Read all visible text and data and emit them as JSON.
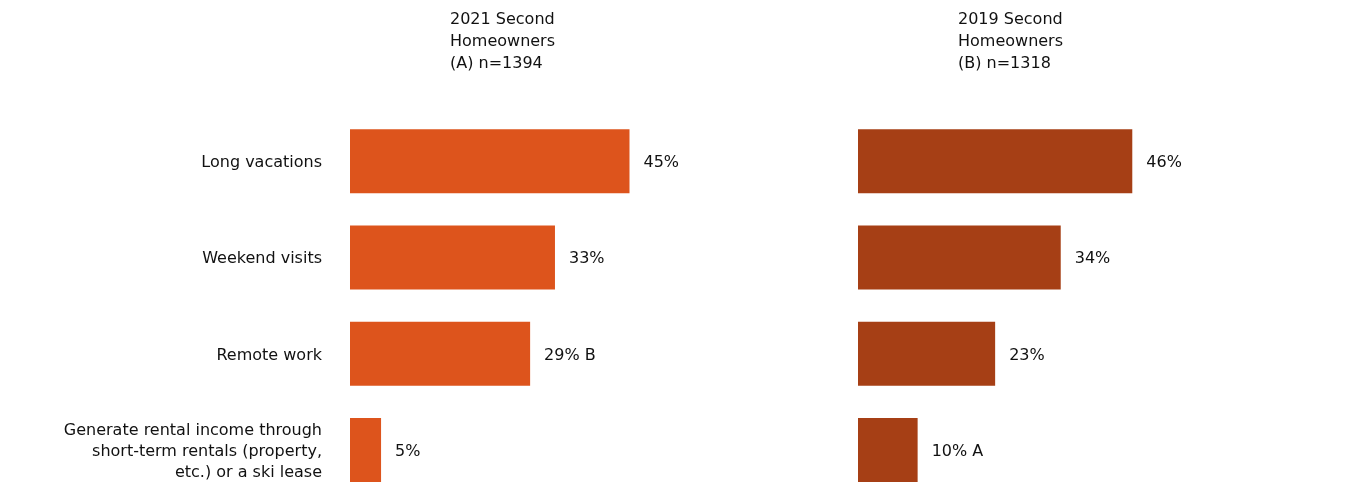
{
  "chart_data": [
    {
      "type": "bar",
      "orientation": "horizontal",
      "title": "2021 Second Homeowners (A) n=1394",
      "categories": [
        "Long vacations",
        "Weekend visits",
        "Remote work",
        "Generate rental income through short-term rentals (property, etc.) or a ski lease"
      ],
      "values": [
        45,
        33,
        29,
        5
      ],
      "value_labels": [
        "45%",
        "33%",
        "29% B",
        "5%"
      ],
      "color": "#dd541c",
      "tick_labels": "y"
    },
    {
      "type": "bar",
      "orientation": "horizontal",
      "title": "2019 Second Homeowners (B) n=1318",
      "categories": [
        null,
        null,
        null,
        null
      ],
      "values": [
        46,
        34,
        23,
        10
      ],
      "value_labels": [
        "46%",
        "34%",
        "23%",
        "10% A"
      ],
      "color": "#a63f15",
      "tick_labels": false
    }
  ]
}
